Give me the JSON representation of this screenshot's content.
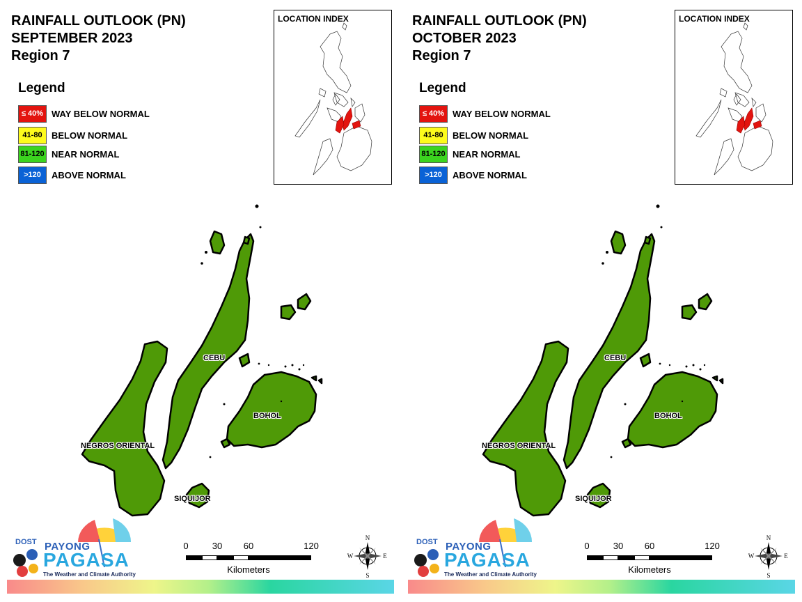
{
  "panels": [
    {
      "title_lines": [
        "RAINFALL OUTLOOK (PN)",
        "SEPTEMBER 2023",
        "Region 7"
      ],
      "inset_title": "LOCATION INDEX"
    },
    {
      "title_lines": [
        "RAINFALL OUTLOOK (PN)",
        "OCTOBER 2023",
        "Region 7"
      ],
      "inset_title": "LOCATION INDEX"
    }
  ],
  "legend": {
    "title": "Legend",
    "items": [
      {
        "range": "≤ 40%",
        "label": "WAY BELOW NORMAL",
        "color": "#e3140f",
        "text_color": "#ffffff"
      },
      {
        "range": "41-80",
        "label": "BELOW NORMAL",
        "color": "#fdfb1c",
        "text_color": "#000000"
      },
      {
        "range": "81-120",
        "label": "NEAR NORMAL",
        "color": "#3bd41f",
        "text_color": "#000000"
      },
      {
        "range": ">120",
        "label": "ABOVE NORMAL",
        "color": "#0a62d6",
        "text_color": "#ffffff"
      }
    ]
  },
  "map": {
    "fill_color": "#4f9a07",
    "places": [
      "CEBU",
      "BOHOL",
      "NEGROS ORIENTAL",
      "SIQUIJOR"
    ],
    "category": "NEAR NORMAL"
  },
  "scale": {
    "ticks": [
      "0",
      "30",
      "60",
      "120"
    ],
    "unit": "Kilometers"
  },
  "compass": {
    "n": "N",
    "e": "E",
    "s": "S",
    "w": "W"
  },
  "logo": {
    "dost": "DOST",
    "payong": "PAYONG",
    "pagasa": "PAGASA",
    "tagline": "The Weather and Climate Authority"
  }
}
